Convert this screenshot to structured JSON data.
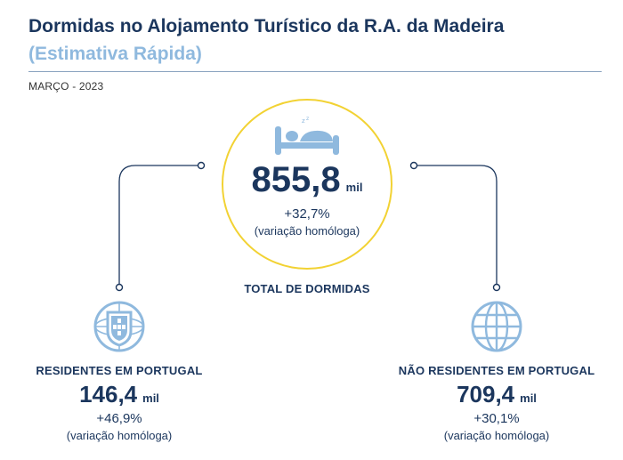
{
  "header": {
    "title": "Dormidas no Alojamento Turístico da R.A. da Madeira",
    "subtitle": "(Estimativa Rápida)",
    "period": "MARÇO - 2023"
  },
  "total": {
    "value": "855,8",
    "unit": "mil",
    "variation": "+32,7%",
    "variation_note": "(variação homóloga)",
    "label": "TOTAL DE DORMIDAS",
    "icon": "bed-icon"
  },
  "residents": {
    "label": "RESIDENTES EM PORTUGAL",
    "value": "146,4",
    "unit": "mil",
    "variation": "+46,9%",
    "variation_note": "(variação homóloga)",
    "icon": "portugal-coat-of-arms-icon"
  },
  "non_residents": {
    "label": "NÃO RESIDENTES EM PORTUGAL",
    "value": "709,4",
    "unit": "mil",
    "variation": "+30,1%",
    "variation_note": "(variação homóloga)",
    "icon": "globe-icon"
  },
  "colors": {
    "navy": "#1b365d",
    "light_blue": "#8fb9de",
    "circle_border": "#f2d233"
  }
}
